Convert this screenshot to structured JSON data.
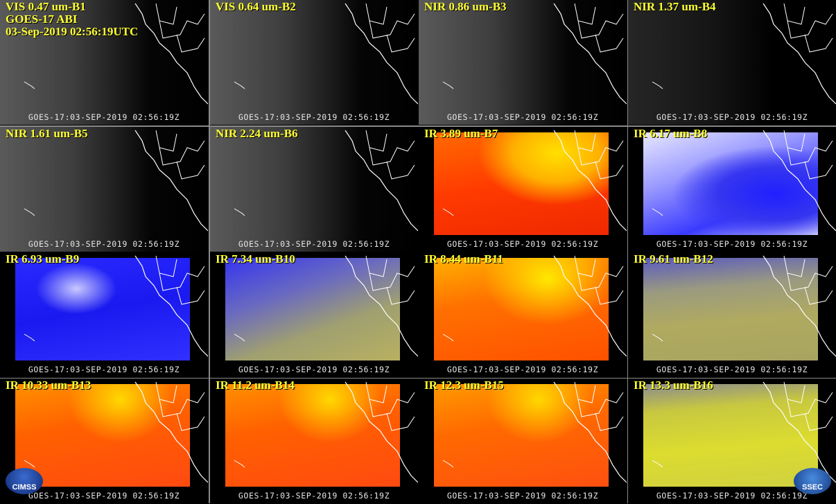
{
  "header": {
    "lines": [
      "GOES-17 ABI",
      "03-Sep-2019 02:56:19UTC"
    ]
  },
  "panels": [
    {
      "title": "VIS 0.47 um-B1",
      "footer": "GOES-17:03-SEP-2019 02:56:19Z"
    },
    {
      "title": "VIS 0.64 um-B2",
      "footer": "GOES-17:03-SEP-2019 02:56:19Z"
    },
    {
      "title": "NIR 0.86 um-B3",
      "footer": "GOES-17:03-SEP-2019 02:56:19Z"
    },
    {
      "title": "NIR 1.37 um-B4",
      "footer": "GOES-17:03-SEP-2019 02:56:19Z"
    },
    {
      "title": "NIR 1.61 um-B5",
      "footer": "GOES-17:03-SEP-2019 02:56:19Z"
    },
    {
      "title": "NIR 2.24 um-B6",
      "footer": "GOES-17:03-SEP-2019 02:56:19Z"
    },
    {
      "title": "IR 3.89 um-B7",
      "footer": "GOES-17:03-SEP-2019 02:56:19Z"
    },
    {
      "title": "IR 6.17 um-B8",
      "footer": "GOES-17:03-SEP-2019 02:56:19Z"
    },
    {
      "title": "IR 6.93 um-B9",
      "footer": "GOES-17:03-SEP-2019 02:56:19Z"
    },
    {
      "title": "IR 7.34 um-B10",
      "footer": "GOES-17:03-SEP-2019 02:56:19Z"
    },
    {
      "title": "IR 8.44 um-B11",
      "footer": "GOES-17:03-SEP-2019 02:56:19Z"
    },
    {
      "title": "IR 9.61 um-B12",
      "footer": "GOES-17:03-SEP-2019 02:56:19Z"
    },
    {
      "title": "IR 10.33 um-B13",
      "footer": "GOES-17:03-SEP-2019 02:56:19Z"
    },
    {
      "title": "IR 11.2 um-B14",
      "footer": "GOES-17:03-SEP-2019 02:56:19Z"
    },
    {
      "title": "IR 12.3 um-B15",
      "footer": "GOES-17:03-SEP-2019 02:56:19Z"
    },
    {
      "title": "IR 13.3 um-B16",
      "footer": "GOES-17:03-SEP-2019 02:56:19Z"
    }
  ],
  "logos": [
    "CIMSS",
    "SSEC"
  ]
}
